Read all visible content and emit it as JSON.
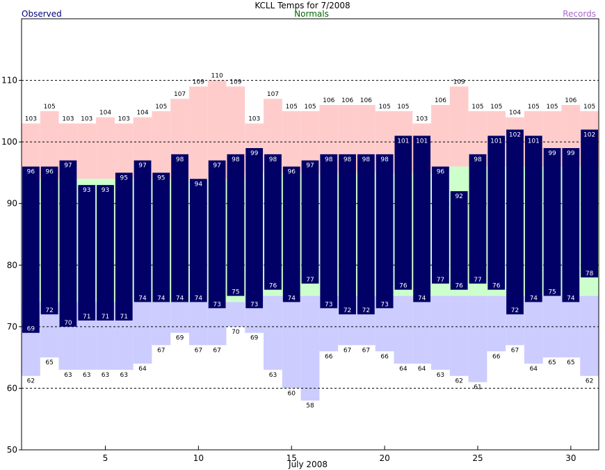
{
  "chart_data": {
    "type": "bar",
    "title": "KCLL Temps for 7/2008",
    "xlabel": "July 2008",
    "ylabel": "",
    "legend": {
      "observed": "Observed",
      "normals": "Normals",
      "records": "Records"
    },
    "ylim": [
      50,
      120
    ],
    "yticks": [
      50,
      60,
      70,
      80,
      90,
      100,
      110
    ],
    "xticks": [
      5,
      10,
      15,
      20,
      25,
      30
    ],
    "grid": "dashed-horizontal",
    "days": [
      1,
      2,
      3,
      4,
      5,
      6,
      7,
      8,
      9,
      10,
      11,
      12,
      13,
      14,
      15,
      16,
      17,
      18,
      19,
      20,
      21,
      22,
      23,
      24,
      25,
      26,
      27,
      28,
      29,
      30,
      31
    ],
    "series": [
      {
        "name": "Observed",
        "role": "observed_high",
        "values": [
          96,
          96,
          97,
          93,
          93,
          95,
          97,
          95,
          98,
          94,
          97,
          98,
          99,
          98,
          96,
          97,
          98,
          98,
          98,
          98,
          101,
          101,
          96,
          92,
          98,
          101,
          102,
          101,
          99,
          99,
          102
        ]
      },
      {
        "name": "Observed",
        "role": "observed_low",
        "values": [
          69,
          72,
          70,
          71,
          71,
          71,
          74,
          74,
          74,
          74,
          73,
          75,
          73,
          76,
          74,
          77,
          73,
          72,
          72,
          73,
          76,
          74,
          77,
          76,
          77,
          76,
          72,
          74,
          75,
          74,
          78
        ]
      },
      {
        "name": "Records",
        "role": "record_high",
        "values": [
          103,
          105,
          103,
          103,
          104,
          103,
          104,
          105,
          107,
          109,
          110,
          109,
          103,
          107,
          105,
          105,
          106,
          106,
          106,
          105,
          105,
          103,
          106,
          109,
          105,
          105,
          104,
          105,
          105,
          106,
          105
        ]
      },
      {
        "name": "Records",
        "role": "record_low",
        "values": [
          62,
          65,
          63,
          63,
          63,
          63,
          64,
          67,
          69,
          67,
          67,
          70,
          69,
          63,
          60,
          58,
          66,
          67,
          67,
          66,
          64,
          64,
          63,
          62,
          61,
          66,
          67,
          64,
          65,
          65,
          62
        ]
      },
      {
        "name": "Normals",
        "role": "normal_high",
        "values": [
          94,
          94,
          94,
          94,
          94,
          94,
          94,
          94,
          94,
          94,
          94,
          94,
          95,
          95,
          95,
          95,
          95,
          95,
          95,
          95,
          95,
          95,
          95,
          96,
          96,
          96,
          96,
          96,
          96,
          96,
          96
        ]
      },
      {
        "name": "Normals",
        "role": "normal_low",
        "values": [
          74,
          74,
          74,
          74,
          74,
          74,
          74,
          74,
          74,
          74,
          74,
          74,
          75,
          75,
          75,
          75,
          75,
          75,
          75,
          75,
          75,
          75,
          75,
          75,
          75,
          75,
          75,
          75,
          75,
          75,
          75
        ]
      }
    ],
    "colors": {
      "observed": "#000066",
      "normals_band": "#ccffcc",
      "record_high_band": "#ffcccc",
      "record_low_band": "#ccccff",
      "legend_observed": "#000080",
      "legend_normals": "#006600",
      "legend_records": "#aa66cc"
    }
  }
}
